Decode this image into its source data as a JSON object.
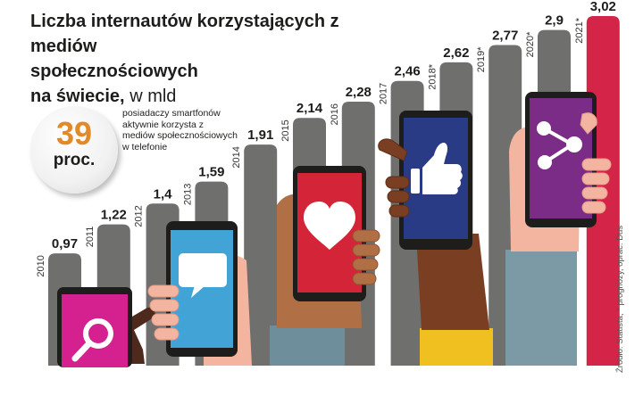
{
  "title": {
    "line1": "Liczba internautów korzystających z mediów",
    "line2": "społecznościowych",
    "line3_bold": "na świecie,",
    "line3_unit": "w mld"
  },
  "badge": {
    "value": "39",
    "unit": "proc.",
    "description": "posiadaczy smartfonów aktywnie korzysta z mediów społecznościowych w telefonie"
  },
  "source": "Źródło: Statista, * prognozy, oprac. Dus",
  "chart_data": {
    "type": "bar",
    "categories": [
      "2010",
      "2011",
      "2012",
      "2013",
      "2014",
      "2015",
      "2016",
      "2017",
      "2018*",
      "2019*",
      "2020*",
      "2021*"
    ],
    "values": [
      0.97,
      1.22,
      1.4,
      1.59,
      1.91,
      2.14,
      2.28,
      2.46,
      2.62,
      2.77,
      2.9,
      3.02
    ],
    "value_labels": [
      "0,97",
      "1,22",
      "1,4",
      "1,59",
      "1,91",
      "2,14",
      "2,28",
      "2,46",
      "2,62",
      "2,77",
      "2,9",
      "3,02"
    ],
    "ylim": [
      0,
      3.02
    ],
    "colors": {
      "bar": "#6f6f6e",
      "highlight_bar": "#d42448",
      "label": "#1d1d1b"
    }
  },
  "icons": [
    "magnifier-icon",
    "speech-bubble-icon",
    "heart-icon",
    "thumbs-up-icon",
    "share-icon"
  ]
}
